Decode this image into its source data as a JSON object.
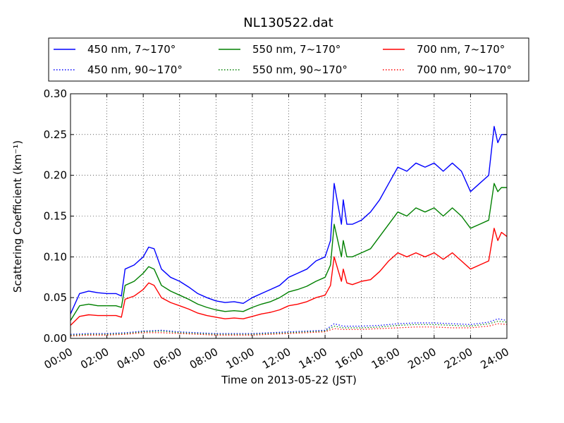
{
  "chart_data": {
    "type": "line",
    "title": "NL130522.dat",
    "xlabel": "Time on 2013-05-22 (JST)",
    "ylabel": "Scattering Coefficient (km⁻¹)",
    "xlim": [
      0,
      24
    ],
    "ylim": [
      0,
      0.3
    ],
    "grid": true,
    "legend_position": "top, outside plot, 3 columns",
    "x_ticks": [
      "00:00",
      "02:00",
      "04:00",
      "06:00",
      "08:00",
      "10:00",
      "12:00",
      "14:00",
      "16:00",
      "18:00",
      "20:00",
      "22:00",
      "24:00"
    ],
    "y_ticks": [
      "0.00",
      "0.05",
      "0.10",
      "0.15",
      "0.20",
      "0.25",
      "0.30"
    ],
    "series": [
      {
        "name": "450 nm, 7~170°",
        "color": "#0000ff",
        "style": "solid",
        "x": [
          0,
          0.5,
          1,
          1.5,
          2,
          2.5,
          2.8,
          3,
          3.5,
          4,
          4.3,
          4.6,
          5,
          5.5,
          6,
          6.5,
          7,
          7.5,
          8,
          8.5,
          9,
          9.5,
          10,
          10.5,
          11,
          11.5,
          12,
          12.5,
          13,
          13.5,
          14,
          14.3,
          14.5,
          14.7,
          14.9,
          15,
          15.2,
          15.5,
          16,
          16.5,
          17,
          17.5,
          18,
          18.5,
          19,
          19.5,
          20,
          20.5,
          21,
          21.5,
          22,
          22.5,
          23,
          23.3,
          23.5,
          23.7,
          24
        ],
        "y": [
          0.03,
          0.055,
          0.058,
          0.056,
          0.055,
          0.055,
          0.052,
          0.085,
          0.09,
          0.1,
          0.112,
          0.11,
          0.085,
          0.075,
          0.07,
          0.063,
          0.055,
          0.05,
          0.046,
          0.044,
          0.045,
          0.043,
          0.05,
          0.055,
          0.06,
          0.065,
          0.075,
          0.08,
          0.085,
          0.095,
          0.1,
          0.12,
          0.19,
          0.165,
          0.14,
          0.17,
          0.14,
          0.14,
          0.145,
          0.155,
          0.17,
          0.19,
          0.21,
          0.205,
          0.215,
          0.21,
          0.215,
          0.205,
          0.215,
          0.205,
          0.18,
          0.19,
          0.2,
          0.26,
          0.24,
          0.25,
          0.25
        ]
      },
      {
        "name": "550 nm, 7~170°",
        "color": "#008000",
        "style": "solid",
        "x": [
          0,
          0.5,
          1,
          1.5,
          2,
          2.5,
          2.8,
          3,
          3.5,
          4,
          4.3,
          4.6,
          5,
          5.5,
          6,
          6.5,
          7,
          7.5,
          8,
          8.5,
          9,
          9.5,
          10,
          10.5,
          11,
          11.5,
          12,
          12.5,
          13,
          13.5,
          14,
          14.3,
          14.5,
          14.7,
          14.9,
          15,
          15.2,
          15.5,
          16,
          16.5,
          17,
          17.5,
          18,
          18.5,
          19,
          19.5,
          20,
          20.5,
          21,
          21.5,
          22,
          22.5,
          23,
          23.3,
          23.5,
          23.7,
          24
        ],
        "y": [
          0.022,
          0.04,
          0.042,
          0.04,
          0.04,
          0.04,
          0.038,
          0.065,
          0.07,
          0.08,
          0.088,
          0.085,
          0.065,
          0.058,
          0.053,
          0.048,
          0.042,
          0.038,
          0.035,
          0.033,
          0.034,
          0.033,
          0.038,
          0.042,
          0.045,
          0.05,
          0.057,
          0.06,
          0.064,
          0.07,
          0.075,
          0.09,
          0.14,
          0.12,
          0.1,
          0.12,
          0.1,
          0.1,
          0.105,
          0.11,
          0.125,
          0.14,
          0.155,
          0.15,
          0.16,
          0.155,
          0.16,
          0.15,
          0.16,
          0.15,
          0.135,
          0.14,
          0.145,
          0.19,
          0.18,
          0.185,
          0.185
        ]
      },
      {
        "name": "700 nm, 7~170°",
        "color": "#ff0000",
        "style": "solid",
        "x": [
          0,
          0.5,
          1,
          1.5,
          2,
          2.5,
          2.8,
          3,
          3.5,
          4,
          4.3,
          4.6,
          5,
          5.5,
          6,
          6.5,
          7,
          7.5,
          8,
          8.5,
          9,
          9.5,
          10,
          10.5,
          11,
          11.5,
          12,
          12.5,
          13,
          13.5,
          14,
          14.3,
          14.5,
          14.7,
          14.9,
          15,
          15.2,
          15.5,
          16,
          16.5,
          17,
          17.5,
          18,
          18.5,
          19,
          19.5,
          20,
          20.5,
          21,
          21.5,
          22,
          22.5,
          23,
          23.3,
          23.5,
          23.7,
          24
        ],
        "y": [
          0.016,
          0.027,
          0.029,
          0.028,
          0.028,
          0.028,
          0.026,
          0.048,
          0.052,
          0.06,
          0.068,
          0.065,
          0.05,
          0.044,
          0.04,
          0.036,
          0.031,
          0.028,
          0.026,
          0.024,
          0.025,
          0.024,
          0.027,
          0.03,
          0.032,
          0.035,
          0.04,
          0.042,
          0.045,
          0.05,
          0.053,
          0.065,
          0.1,
          0.085,
          0.07,
          0.085,
          0.068,
          0.066,
          0.07,
          0.072,
          0.082,
          0.095,
          0.105,
          0.1,
          0.105,
          0.1,
          0.105,
          0.097,
          0.105,
          0.095,
          0.085,
          0.09,
          0.095,
          0.135,
          0.12,
          0.13,
          0.125
        ]
      },
      {
        "name": "450 nm, 90~170°",
        "color": "#0000ff",
        "style": "dotted",
        "x": [
          0,
          1,
          2,
          3,
          4,
          5,
          6,
          7,
          8,
          9,
          10,
          11,
          12,
          13,
          14,
          14.5,
          15,
          16,
          17,
          18,
          19,
          20,
          21,
          22,
          23,
          23.5,
          24
        ],
        "y": [
          0.005,
          0.006,
          0.006,
          0.007,
          0.009,
          0.01,
          0.008,
          0.007,
          0.006,
          0.006,
          0.006,
          0.007,
          0.008,
          0.009,
          0.01,
          0.018,
          0.015,
          0.015,
          0.016,
          0.018,
          0.019,
          0.019,
          0.018,
          0.017,
          0.02,
          0.024,
          0.022
        ]
      },
      {
        "name": "550 nm, 90~170°",
        "color": "#008000",
        "style": "dotted",
        "x": [
          0,
          1,
          2,
          3,
          4,
          5,
          6,
          7,
          8,
          9,
          10,
          11,
          12,
          13,
          14,
          14.5,
          15,
          16,
          17,
          18,
          19,
          20,
          21,
          22,
          23,
          23.5,
          24
        ],
        "y": [
          0.004,
          0.005,
          0.005,
          0.006,
          0.008,
          0.009,
          0.007,
          0.006,
          0.005,
          0.005,
          0.005,
          0.006,
          0.007,
          0.008,
          0.009,
          0.015,
          0.013,
          0.013,
          0.014,
          0.016,
          0.017,
          0.017,
          0.016,
          0.015,
          0.018,
          0.021,
          0.02
        ]
      },
      {
        "name": "700 nm, 90~170°",
        "color": "#ff0000",
        "style": "dotted",
        "x": [
          0,
          1,
          2,
          3,
          4,
          5,
          6,
          7,
          8,
          9,
          10,
          11,
          12,
          13,
          14,
          14.5,
          15,
          16,
          17,
          18,
          19,
          20,
          21,
          22,
          23,
          23.5,
          24
        ],
        "y": [
          0.003,
          0.004,
          0.004,
          0.005,
          0.007,
          0.007,
          0.006,
          0.005,
          0.004,
          0.004,
          0.004,
          0.005,
          0.006,
          0.007,
          0.008,
          0.012,
          0.011,
          0.011,
          0.012,
          0.013,
          0.014,
          0.014,
          0.013,
          0.013,
          0.015,
          0.018,
          0.017
        ]
      }
    ]
  }
}
